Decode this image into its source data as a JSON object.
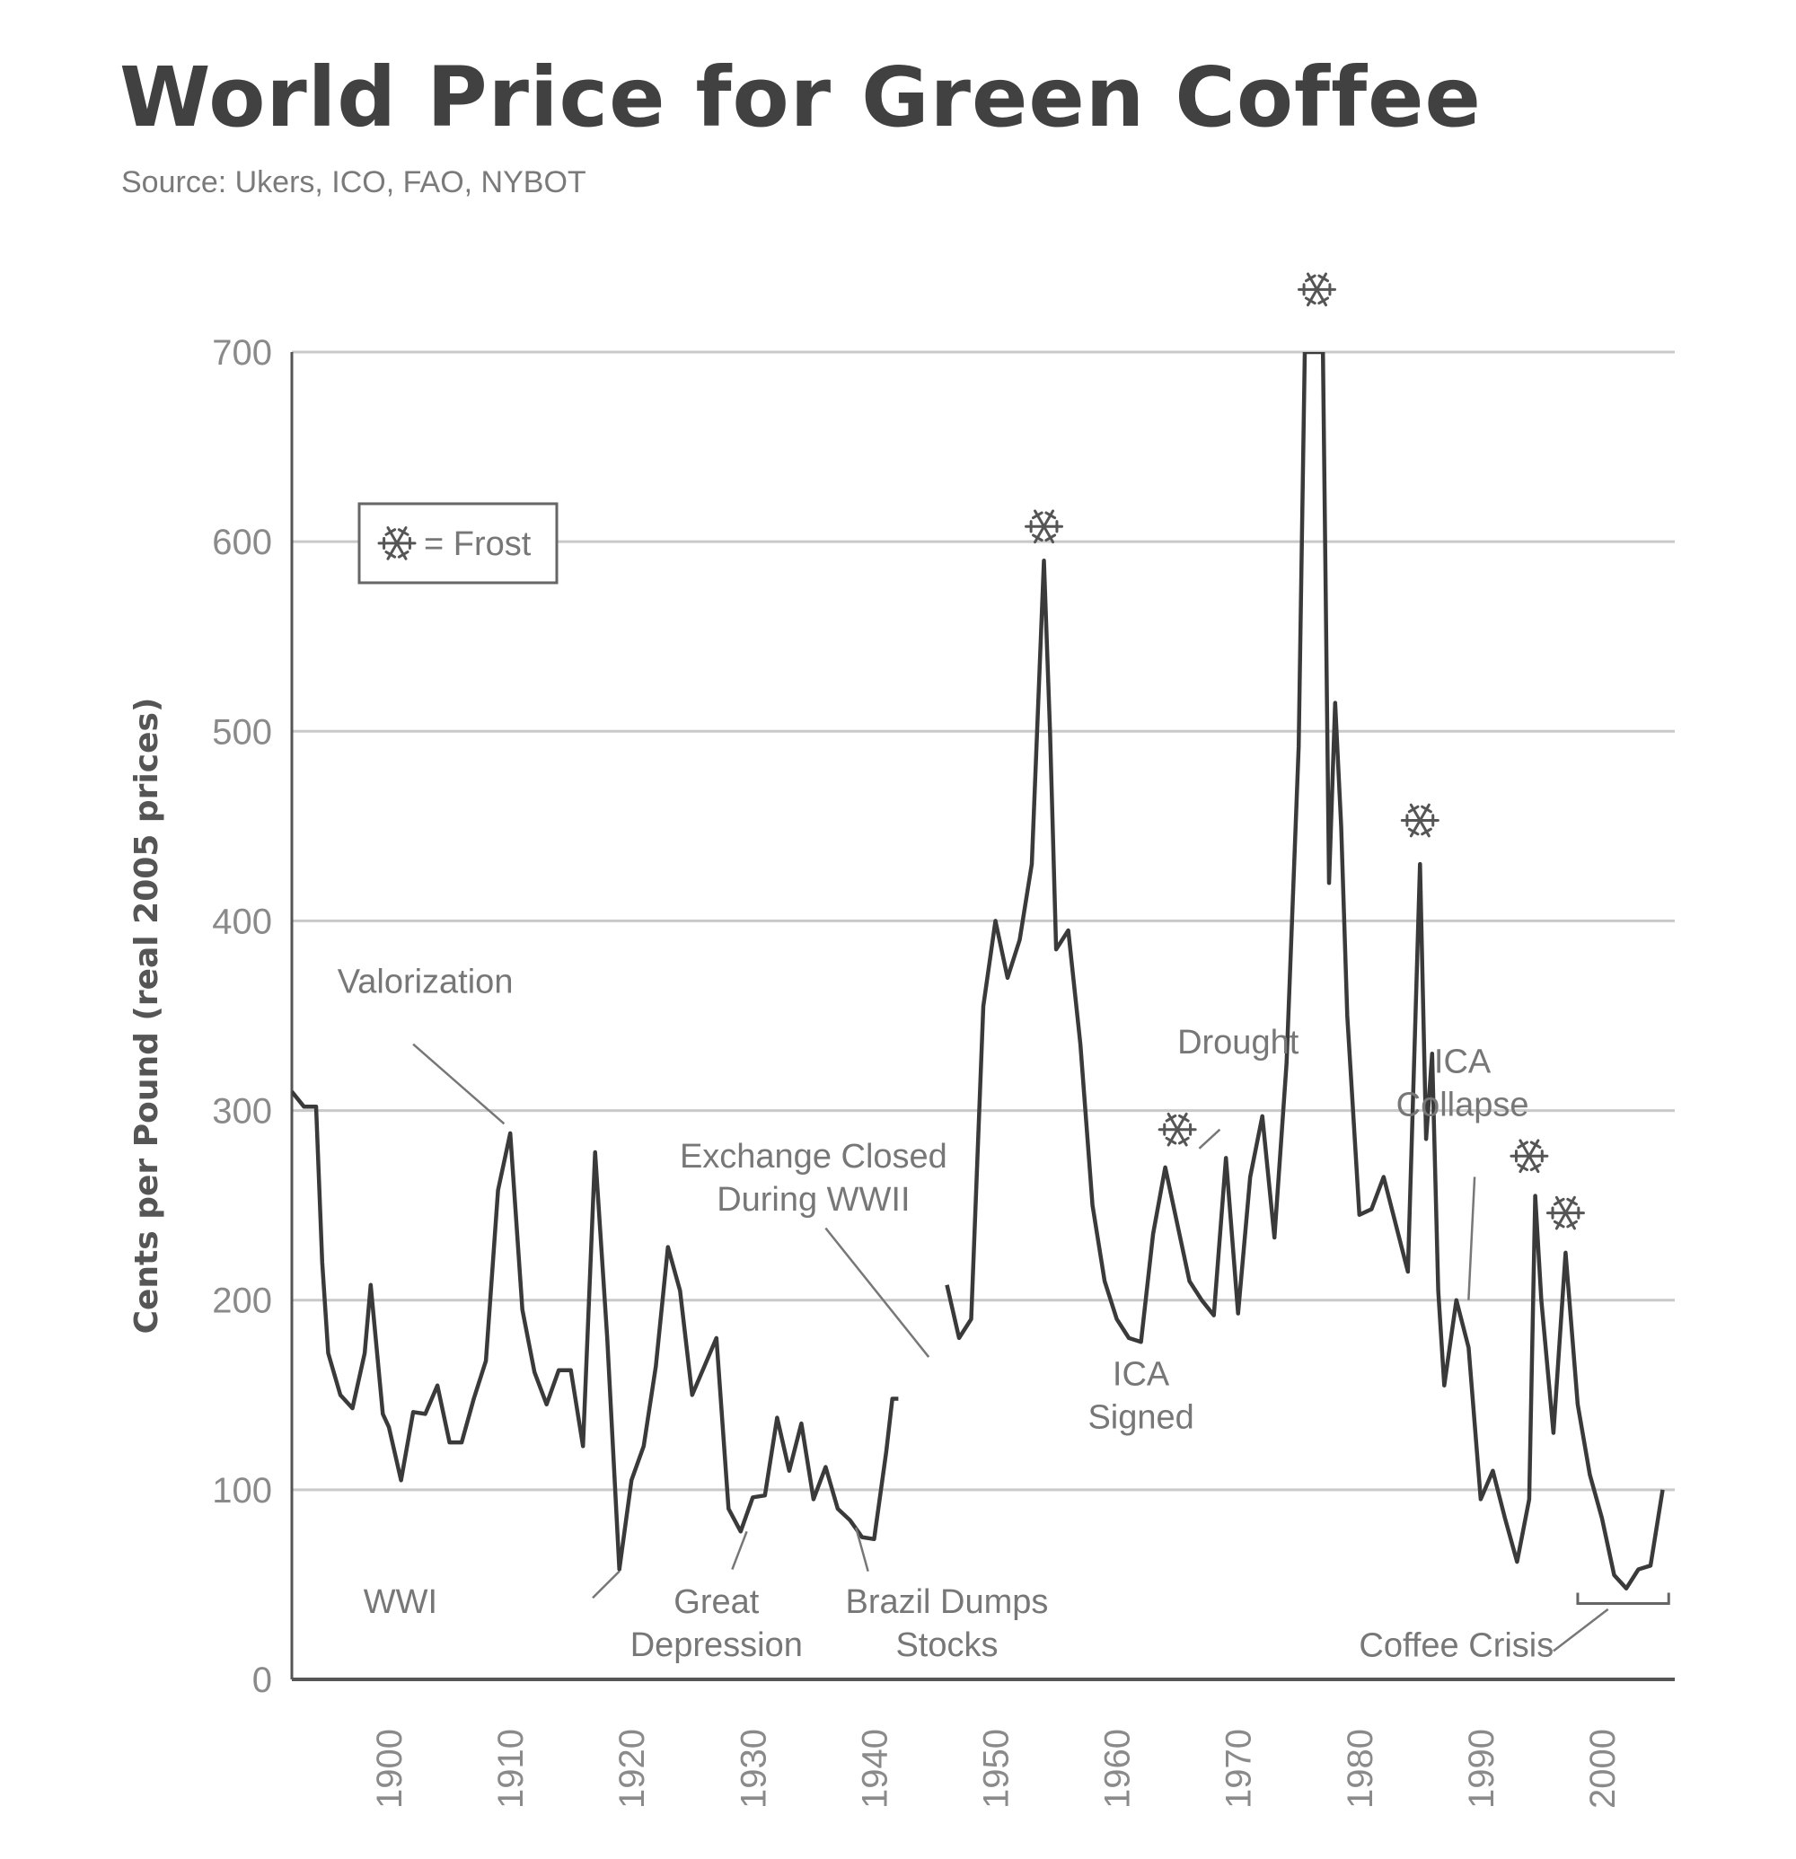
{
  "header": {
    "title": "World Price for Green Coffee",
    "source": "Source: Ukers, ICO, FAO, NYBOT"
  },
  "chart_data": {
    "type": "line",
    "title": "World Price for Green Coffee",
    "subtitle": "Source: Ukers, ICO, FAO, NYBOT",
    "xlabel": "",
    "ylabel": "Cents per Pound (real 2005 prices)",
    "xlim": [
      1892,
      2006
    ],
    "ylim": [
      0,
      700
    ],
    "xticks": [
      1900,
      1910,
      1920,
      1930,
      1940,
      1950,
      1960,
      1970,
      1980,
      1990,
      2000
    ],
    "yticks": [
      0,
      100,
      200,
      300,
      400,
      500,
      600,
      700
    ],
    "grid": true,
    "line_color": "#3a3a3a",
    "grid_color": "#c9c9c9",
    "legend": {
      "symbol": "❄",
      "label": "= Frost",
      "placement": "top-left"
    },
    "series": [
      {
        "segments": [
          {
            "x": [
              1892,
              1893,
              1894,
              1894.5,
              1895,
              1896,
              1897,
              1898,
              1898.5,
              1899.5,
              1900,
              1901,
              1902,
              1903,
              1904,
              1905,
              1906,
              1907,
              1908,
              1909,
              1910,
              1911,
              1912,
              1913,
              1914,
              1915,
              1916,
              1917,
              1918,
              1919,
              1920,
              1921,
              1922,
              1923,
              1924,
              1925,
              1926,
              1927,
              1928,
              1929,
              1930,
              1931,
              1932,
              1933,
              1934,
              1935,
              1936,
              1937,
              1938,
              1939,
              1940,
              1941,
              1941.5,
              1942
            ],
            "y": [
              310,
              302,
              302,
              220,
              172,
              150,
              143,
              172,
              208,
              140,
              133,
              105,
              141,
              140,
              155,
              125,
              125,
              148,
              168,
              258,
              288,
              195,
              162,
              145,
              163,
              163,
              123,
              278,
              180,
              58,
              105,
              123,
              165,
              228,
              205,
              150,
              165,
              180,
              90,
              78,
              96,
              97,
              138,
              110,
              135,
              95,
              112,
              90,
              84,
              75,
              74,
              120,
              148,
              148
            ]
          },
          {
            "x": [
              1946,
              1947,
              1948,
              1949,
              1950,
              1951,
              1952,
              1953,
              1954,
              1954.5,
              1955,
              1956,
              1957,
              1958,
              1959,
              1960,
              1961,
              1962,
              1963,
              1964,
              1965,
              1966,
              1967,
              1968,
              1969,
              1970,
              1971,
              1972,
              1973,
              1974,
              1975,
              1975.5,
              1976,
              1977,
              1977.5,
              1978,
              1978.5,
              1979,
              1980,
              1981,
              1982,
              1983,
              1984,
              1985,
              1985.5,
              1986,
              1986.5,
              1987,
              1988,
              1989,
              1990,
              1991,
              1992,
              1993,
              1994,
              1994.5,
              1995,
              1996,
              1997,
              1998,
              1999,
              2000,
              2001,
              2002,
              2003,
              2004,
              2005
            ],
            "y": [
              208,
              180,
              190,
              355,
              400,
              370,
              390,
              430,
              590,
              500,
              385,
              395,
              335,
              250,
              210,
              190,
              180,
              178,
              235,
              270,
              240,
              210,
              200,
              192,
              275,
              193,
              265,
              297,
              233,
              325,
              492,
              700,
              700,
              700,
              420,
              515,
              450,
              350,
              245,
              248,
              265,
              240,
              215,
              430,
              285,
              330,
              205,
              155,
              200,
              175,
              95,
              110,
              85,
              62,
              95,
              255,
              200,
              130,
              225,
              145,
              108,
              85,
              55,
              48,
              58,
              60,
              100
            ]
          }
        ]
      }
    ],
    "frost_markers": [
      {
        "x": 1954,
        "y": 590
      },
      {
        "x": 1965,
        "y": 272
      },
      {
        "x": 1976.5,
        "y": 715
      },
      {
        "x": 1985,
        "y": 435
      },
      {
        "x": 1994,
        "y": 258
      },
      {
        "x": 1997,
        "y": 228
      }
    ],
    "annotations": [
      {
        "id": "valorization",
        "lines": [
          "Valorization"
        ],
        "x": 1903,
        "y": 362,
        "align": "middle",
        "pointer": {
          "from": [
            1902,
            335
          ],
          "to": [
            1909.5,
            293
          ]
        }
      },
      {
        "id": "wwi",
        "lines": [
          "WWI"
        ],
        "x": 1904,
        "y": 35,
        "align": "end",
        "pointer": {
          "from": [
            1916.8,
            43
          ],
          "to": [
            1919,
            57
          ]
        }
      },
      {
        "id": "great-depression",
        "lines": [
          "Great",
          "Depression"
        ],
        "x": 1927,
        "y": 35,
        "align": "middle",
        "pointer": {
          "from": [
            1928.3,
            58
          ],
          "to": [
            1929.5,
            78
          ]
        }
      },
      {
        "id": "brazil-dumps",
        "lines": [
          "Brazil Dumps",
          "Stocks"
        ],
        "x": 1946,
        "y": 35,
        "align": "middle",
        "pointer": {
          "from": [
            1939.5,
            57
          ],
          "to": [
            1938.5,
            80
          ]
        }
      },
      {
        "id": "exchange-closed",
        "lines": [
          "Exchange Closed",
          "During WWII"
        ],
        "x": 1935,
        "y": 270,
        "align": "middle",
        "pointer": {
          "from": [
            1936,
            238
          ],
          "to": [
            1944.5,
            170
          ]
        }
      },
      {
        "id": "ica-signed",
        "lines": [
          "ICA",
          "Signed"
        ],
        "x": 1962,
        "y": 155,
        "align": "middle",
        "pointer": null
      },
      {
        "id": "drought",
        "lines": [
          "Drought"
        ],
        "x": 1970,
        "y": 330,
        "align": "middle",
        "pointer": {
          "from": [
            1968.5,
            290
          ],
          "to": [
            1966.8,
            280
          ]
        }
      },
      {
        "id": "ica-collapse",
        "lines": [
          "ICA",
          "Collapse"
        ],
        "x": 1988.5,
        "y": 320,
        "align": "middle",
        "pointer": {
          "from": [
            1989.5,
            265
          ],
          "to": [
            1989,
            200
          ]
        }
      },
      {
        "id": "coffee-crisis",
        "lines": [
          "Coffee Crisis"
        ],
        "x": 1988,
        "y": 12,
        "align": "middle",
        "pointer": {
          "from": [
            1996,
            15
          ],
          "to": [
            2000.5,
            37
          ]
        }
      }
    ],
    "bracket": {
      "x0": 1998,
      "x1": 2005.5,
      "y": 40
    }
  }
}
